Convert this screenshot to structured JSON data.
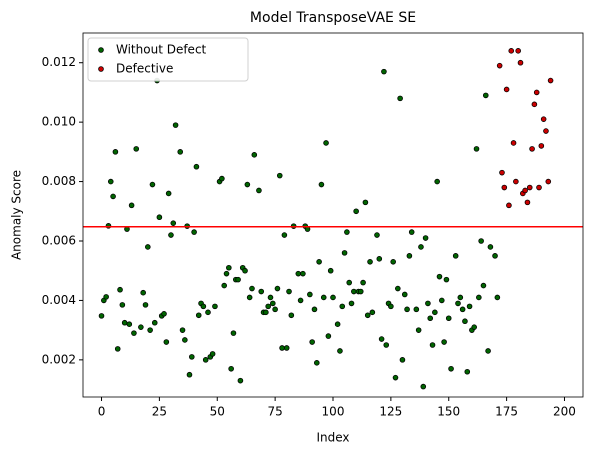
{
  "chart_data": {
    "type": "scatter",
    "title": "Model TransposeVAE SE",
    "x_label": "Index",
    "y_label": "Anomaly Score",
    "xlim": [
      -8,
      208
    ],
    "ylim": [
      0.00075,
      0.013
    ],
    "xticks": [
      0,
      25,
      50,
      75,
      100,
      125,
      150,
      175,
      200
    ],
    "yticks": [
      0.002,
      0.004,
      0.006,
      0.008,
      {
        "value": 0.01,
        "label": "0.010"
      },
      0.012
    ],
    "legend": "upper left",
    "grid": false,
    "hline": 0.00648,
    "hline_color": "#ff0000",
    "series": [
      {
        "name": "Without Defect",
        "color": "#006400",
        "x": [
          0,
          1,
          2,
          3,
          4,
          5,
          6,
          7,
          8,
          9,
          10,
          11,
          12,
          13,
          14,
          15,
          17,
          18,
          19,
          20,
          21,
          22,
          23,
          24,
          25,
          26,
          27,
          28,
          29,
          30,
          31,
          32,
          34,
          35,
          36,
          37,
          38,
          39,
          40,
          41,
          42,
          43,
          44,
          45,
          46,
          47,
          48,
          49,
          51,
          52,
          53,
          54,
          55,
          56,
          57,
          58,
          59,
          60,
          61,
          62,
          63,
          64,
          65,
          66,
          68,
          69,
          70,
          71,
          72,
          73,
          74,
          75,
          76,
          77,
          78,
          79,
          80,
          81,
          82,
          83,
          85,
          86,
          87,
          88,
          89,
          90,
          91,
          92,
          93,
          94,
          95,
          96,
          97,
          98,
          99,
          100,
          102,
          103,
          104,
          105,
          106,
          107,
          108,
          109,
          110,
          111,
          112,
          113,
          114,
          115,
          116,
          117,
          119,
          120,
          121,
          122,
          123,
          124,
          125,
          126,
          127,
          128,
          129,
          130,
          131,
          132,
          133,
          134,
          136,
          137,
          138,
          139,
          140,
          141,
          142,
          143,
          144,
          145,
          146,
          147,
          148,
          149,
          150,
          151,
          153,
          154,
          155,
          156,
          157,
          158,
          159,
          160,
          161,
          162,
          163,
          164,
          165,
          166,
          167,
          168,
          170,
          171
        ],
        "values": [
          0.00348,
          0.004,
          0.00412,
          0.00651,
          0.008,
          0.0075,
          0.009,
          0.00237,
          0.00436,
          0.00385,
          0.00325,
          0.0064,
          0.0032,
          0.0072,
          0.0029,
          0.0091,
          0.0031,
          0.00426,
          0.00385,
          0.0058,
          0.003,
          0.0079,
          0.00325,
          0.0114,
          0.0068,
          0.00348,
          0.00355,
          0.0026,
          0.0076,
          0.0062,
          0.0066,
          0.0099,
          0.009,
          0.003,
          0.00267,
          0.0065,
          0.0015,
          0.0021,
          0.0063,
          0.0085,
          0.0035,
          0.0039,
          0.0038,
          0.002,
          0.0036,
          0.0021,
          0.0022,
          0.0038,
          0.008,
          0.0081,
          0.0045,
          0.0049,
          0.0051,
          0.0017,
          0.0029,
          0.0047,
          0.0047,
          0.0013,
          0.0051,
          0.005,
          0.0079,
          0.0041,
          0.0044,
          0.0089,
          0.0077,
          0.0043,
          0.0036,
          0.0036,
          0.0038,
          0.0041,
          0.0039,
          0.0037,
          0.0044,
          0.0082,
          0.0024,
          0.0062,
          0.0024,
          0.0043,
          0.0035,
          0.0065,
          0.0049,
          0.004,
          0.0049,
          0.0065,
          0.0064,
          0.0042,
          0.0026,
          0.0037,
          0.0019,
          0.0053,
          0.0079,
          0.0041,
          0.0093,
          0.0028,
          0.005,
          0.0041,
          0.0032,
          0.0023,
          0.0038,
          0.0056,
          0.0063,
          0.0046,
          0.0039,
          0.0043,
          0.007,
          0.0043,
          0.0043,
          0.0046,
          0.0073,
          0.0035,
          0.0053,
          0.0036,
          0.0062,
          0.0054,
          0.0027,
          0.0117,
          0.0025,
          0.0039,
          0.0038,
          0.0053,
          0.0014,
          0.0044,
          0.0108,
          0.002,
          0.0042,
          0.0037,
          0.0055,
          0.0063,
          0.0037,
          0.003,
          0.0058,
          0.0011,
          0.0061,
          0.0039,
          0.0034,
          0.0025,
          0.0036,
          0.008,
          0.0048,
          0.004,
          0.0026,
          0.0047,
          0.0034,
          0.0017,
          0.0055,
          0.0039,
          0.0041,
          0.0037,
          0.0033,
          0.0016,
          0.0038,
          0.003,
          0.0031,
          0.0091,
          0.0041,
          0.006,
          0.0045,
          0.0109,
          0.0023,
          0.0058,
          0.0055,
          0.0041
        ]
      },
      {
        "name": "Defective",
        "color": "#cc0000",
        "x": [
          172,
          173,
          174,
          175,
          176,
          177,
          178,
          179,
          180,
          181,
          182,
          183,
          184,
          185,
          186,
          187,
          188,
          189,
          190,
          191,
          192,
          193,
          194
        ],
        "values": [
          0.0119,
          0.0083,
          0.0078,
          0.0111,
          0.0072,
          0.0124,
          0.0093,
          0.008,
          0.0124,
          0.012,
          0.0076,
          0.0077,
          0.0073,
          0.0078,
          0.0091,
          0.0106,
          0.011,
          0.0078,
          0.0092,
          0.0101,
          0.0097,
          0.008,
          0.0114
        ]
      }
    ]
  }
}
